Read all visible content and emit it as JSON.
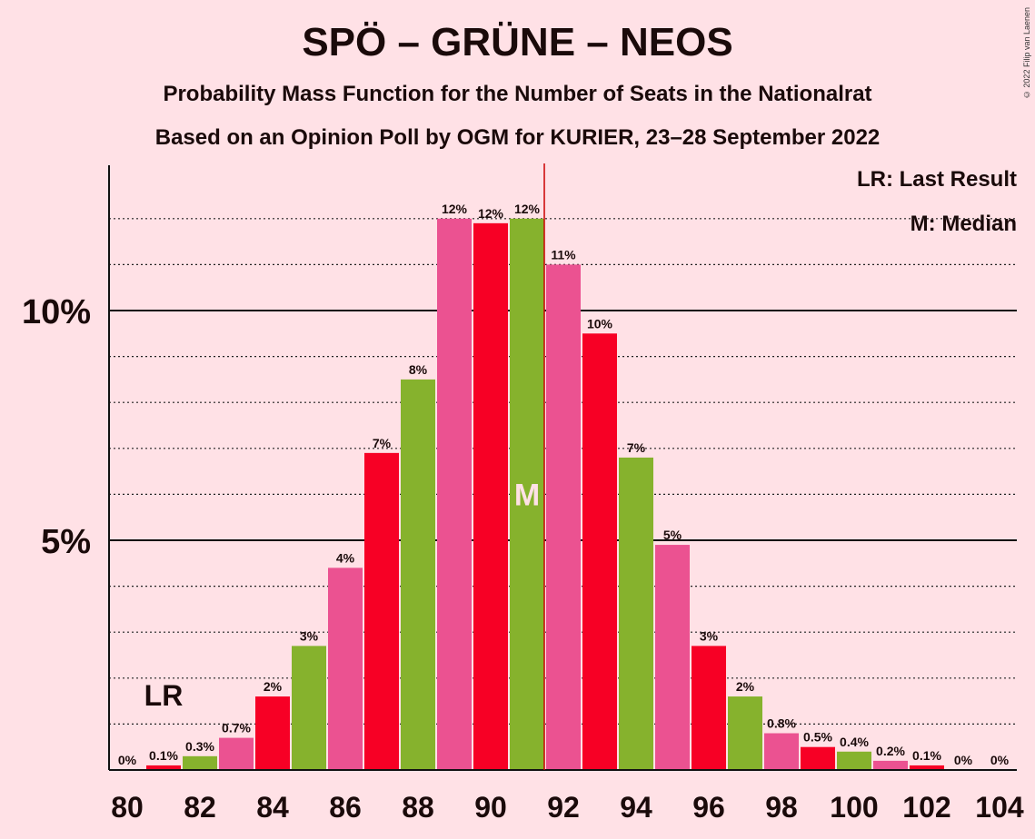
{
  "title": "SPÖ – GRÜNE – NEOS",
  "subtitle1": "Probability Mass Function for the Number of Seats in the Nationalrat",
  "subtitle2": "Based on an Opinion Poll by OGM for KURIER, 23–28 September 2022",
  "copyright": "© 2022 Filip van Laenen",
  "legend": {
    "lr": "LR: Last Result",
    "m": "M: Median"
  },
  "markers": {
    "lr_label": "LR",
    "median_label": "M",
    "last_result_seat": 81,
    "median_seat": 91,
    "majority_line_seat": 92
  },
  "colors": {
    "background": "#FFE1E6",
    "red": "#F70025",
    "green": "#86B22D",
    "pink": "#EB5291",
    "median_line": "#CC0000"
  },
  "chart_data": {
    "type": "bar",
    "x": [
      80,
      81,
      82,
      83,
      84,
      85,
      86,
      87,
      88,
      89,
      90,
      91,
      92,
      93,
      94,
      95,
      96,
      97,
      98,
      99,
      100,
      101,
      102,
      103,
      104
    ],
    "values": [
      0,
      0.1,
      0.3,
      0.7,
      1.6,
      2.7,
      4.4,
      6.9,
      8.5,
      12,
      11.9,
      12,
      11,
      9.5,
      6.8,
      4.9,
      2.7,
      1.6,
      0.8,
      0.5,
      0.4,
      0.2,
      0.1,
      0,
      0
    ],
    "labels": [
      "0%",
      "0.1%",
      "0.3%",
      "0.7%",
      "2%",
      "3%",
      "4%",
      "7%",
      "8%",
      "12%",
      "12%",
      "12%",
      "11%",
      "10%",
      "7%",
      "5%",
      "3%",
      "2%",
      "0.8%",
      "0.5%",
      "0.4%",
      "0.2%",
      "0.1%",
      "0%",
      "0%"
    ],
    "bar_colors": [
      "red",
      "red",
      "green",
      "pink",
      "red",
      "green",
      "pink",
      "red",
      "green",
      "pink",
      "red",
      "green",
      "pink",
      "red",
      "green",
      "pink",
      "red",
      "green",
      "pink",
      "red",
      "green",
      "pink",
      "red",
      "green",
      "pink"
    ],
    "xticks": [
      80,
      82,
      84,
      86,
      88,
      90,
      92,
      94,
      96,
      98,
      100,
      102,
      104
    ],
    "yticks": [
      {
        "value": 5,
        "label": "5%"
      },
      {
        "value": 10,
        "label": "10%"
      }
    ],
    "ylim": [
      0,
      13.1
    ],
    "grid": "dotted every 1%"
  }
}
